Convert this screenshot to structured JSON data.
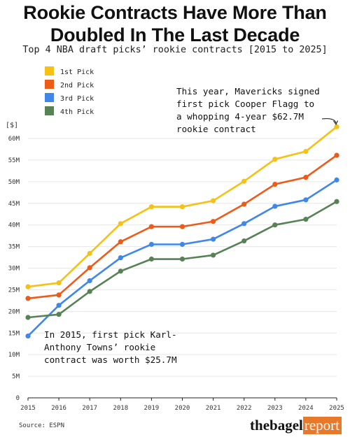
{
  "chart_data": {
    "type": "line",
    "title": "Rookie Contracts Have More Than Doubled In The Last Decade",
    "subtitle": "Top 4 NBA draft picks’ rookie contracts [2015 to 2025]",
    "ylabel": "[$]",
    "xlabel": "",
    "x": [
      "2015",
      "2016",
      "2017",
      "2018",
      "2019",
      "2020",
      "2021",
      "2022",
      "2023",
      "2024",
      "2025"
    ],
    "ylim": [
      0,
      60
    ],
    "yticks": [
      0,
      5,
      10,
      15,
      20,
      25,
      30,
      35,
      40,
      45,
      50,
      55,
      60
    ],
    "ytick_labels": [
      "0",
      "5M",
      "10M",
      "15M",
      "20M",
      "25M",
      "30M",
      "35M",
      "40M",
      "45M",
      "50M",
      "55M",
      "60M"
    ],
    "grid": true,
    "legend_position": "top-left",
    "series": [
      {
        "name": "1st Pick",
        "color": "#f5c116",
        "values": [
          25.7,
          26.6,
          33.4,
          40.3,
          44.2,
          44.2,
          45.6,
          50.1,
          55.2,
          57.0,
          62.7
        ]
      },
      {
        "name": "2nd Pick",
        "color": "#ee5a18",
        "values": [
          23.0,
          23.8,
          30.1,
          36.1,
          39.6,
          39.6,
          40.8,
          44.8,
          49.4,
          51.0,
          56.1
        ]
      },
      {
        "name": "3rd Pick",
        "color": "#3f87ea",
        "values": [
          14.3,
          21.4,
          27.1,
          32.4,
          35.5,
          35.5,
          36.7,
          40.3,
          44.3,
          45.8,
          50.4
        ]
      },
      {
        "name": "4th Pick",
        "color": "#568255",
        "values": [
          18.6,
          19.3,
          24.6,
          29.3,
          32.1,
          32.1,
          33.0,
          36.3,
          40.0,
          41.3,
          45.4
        ]
      }
    ],
    "annotations": [
      {
        "lines": [
          "This year, Mavericks signed",
          "first pick Cooper Flagg to",
          "a whopping 4-year $62.7M",
          "rookie contract"
        ]
      },
      {
        "lines": [
          "In 2015, first pick Karl-",
          "Anthony Towns’ rookie",
          "contract was worth $25.7M"
        ]
      }
    ]
  },
  "footer": {
    "source": "Source: ESPN",
    "brand_part1": "thebagel",
    "brand_part2": "report"
  }
}
